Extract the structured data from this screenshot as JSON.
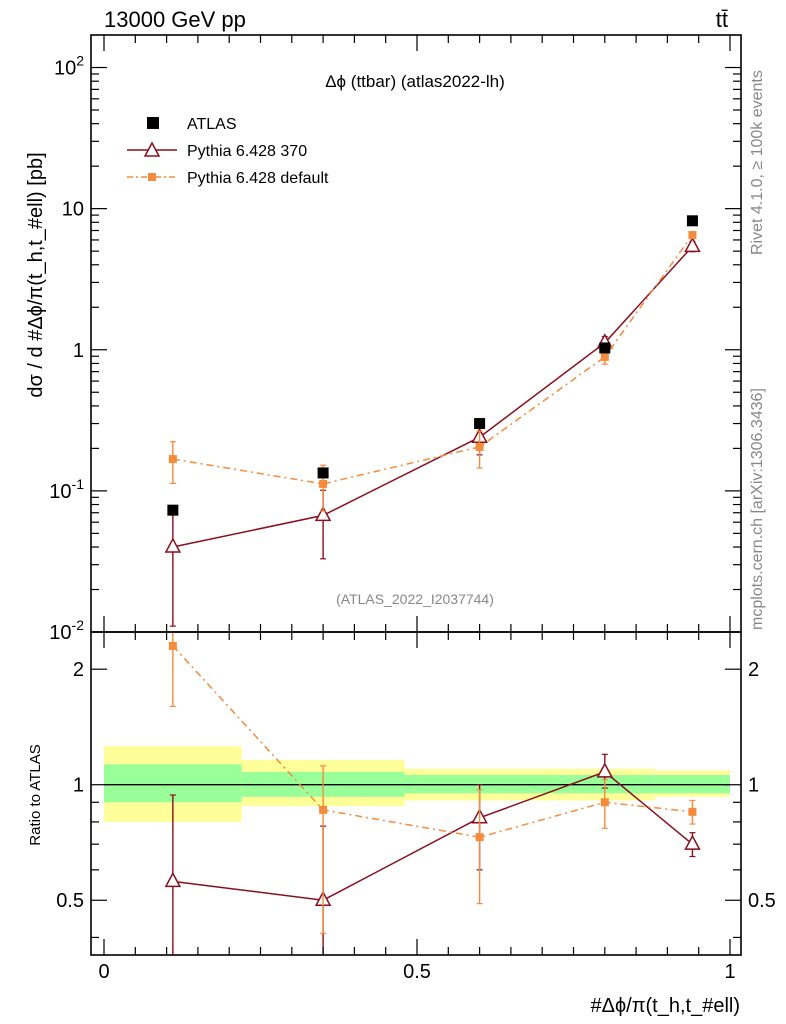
{
  "header": {
    "left_title": "13000 GeV pp",
    "right_title": "tt̄"
  },
  "side_labels": {
    "rivet": "Rivet 4.1.0, ≥ 100k events",
    "mcplots": "mcplots.cern.ch [arXiv:1306.3436]"
  },
  "plot": {
    "title": "Δϕ (ttbar) (atlas2022-lh)",
    "watermark": "(ATLAS_2022_I2037744)",
    "y_label": "dσ / d #Δϕ/π(t_h,t_#ell) [pb]",
    "ratio_y_label": "Ratio to ATLAS",
    "x_label": "#Δϕ/π(t_h,t_#ell)",
    "y_tick_labels": [
      "10^-2",
      "10^-1",
      "1",
      "10",
      "10^2"
    ],
    "ratio_tick_labels": [
      "0.5",
      "1",
      "2"
    ],
    "x_tick_labels": [
      "0",
      "0.5",
      "1"
    ]
  },
  "legend": {
    "atlas": "ATLAS",
    "pythia370": "Pythia 6.428 370",
    "pythia_default": "Pythia 6.428 default"
  },
  "colors": {
    "atlas": "#000000",
    "pythia370": "#8b0e1f",
    "pythia_default": "#f58b3c",
    "band_inner": "#99ff99",
    "band_outer": "#ffff99"
  },
  "chart_data": {
    "type": "scatter",
    "xlabel": "#Δϕ/π(t_h,t_#ell)",
    "ylabel": "dσ / d #Δϕ/π(t_h,t_#ell) [pb]",
    "xlim": [
      0,
      1
    ],
    "ylim": [
      0.01,
      170
    ],
    "yscale": "log",
    "ratio_ylim": [
      0.36,
      2.5
    ],
    "bins": [
      {
        "lo": 0.0,
        "hi": 0.22,
        "x": 0.11
      },
      {
        "lo": 0.22,
        "hi": 0.48,
        "x": 0.35
      },
      {
        "lo": 0.48,
        "hi": 0.72,
        "x": 0.6
      },
      {
        "lo": 0.72,
        "hi": 0.88,
        "x": 0.8
      },
      {
        "lo": 0.88,
        "hi": 1.0,
        "x": 0.94
      }
    ],
    "atlas": {
      "values": [
        0.073,
        0.134,
        0.3,
        1.03,
        8.2
      ],
      "band_inner": [
        [
          0.9,
          1.13
        ],
        [
          0.93,
          1.08
        ],
        [
          0.95,
          1.06
        ],
        [
          0.95,
          1.06
        ],
        [
          0.95,
          1.06
        ]
      ],
      "band_outer": [
        [
          0.8,
          1.26
        ],
        [
          0.88,
          1.16
        ],
        [
          0.91,
          1.1
        ],
        [
          0.91,
          1.1
        ],
        [
          0.93,
          1.09
        ]
      ]
    },
    "series": [
      {
        "name": "Pythia 6.428 370",
        "values": [
          0.04,
          0.067,
          0.24,
          1.12,
          5.4
        ],
        "err_lo": [
          0.029,
          0.034,
          0.06,
          0.12,
          0.45
        ],
        "err_hi": [
          0.029,
          0.034,
          0.06,
          0.12,
          0.45
        ],
        "ratio": [
          0.56,
          0.5,
          0.82,
          1.08,
          0.7
        ],
        "ratio_err_lo": [
          0.4,
          0.25,
          0.22,
          0.1,
          0.05
        ],
        "ratio_err_hi": [
          0.38,
          0.28,
          0.18,
          0.12,
          0.05
        ]
      },
      {
        "name": "Pythia 6.428 default",
        "values": [
          0.168,
          0.112,
          0.205,
          0.89,
          6.5
        ],
        "err_lo": [
          0.055,
          0.04,
          0.06,
          0.1,
          0.35
        ],
        "err_hi": [
          0.055,
          0.04,
          0.06,
          0.1,
          0.35
        ],
        "ratio": [
          2.3,
          0.86,
          0.73,
          0.9,
          0.85
        ],
        "ratio_err_lo": [
          0.7,
          0.45,
          0.24,
          0.13,
          0.06
        ],
        "ratio_err_hi": [
          0.7,
          0.26,
          0.24,
          0.13,
          0.06
        ]
      }
    ]
  }
}
